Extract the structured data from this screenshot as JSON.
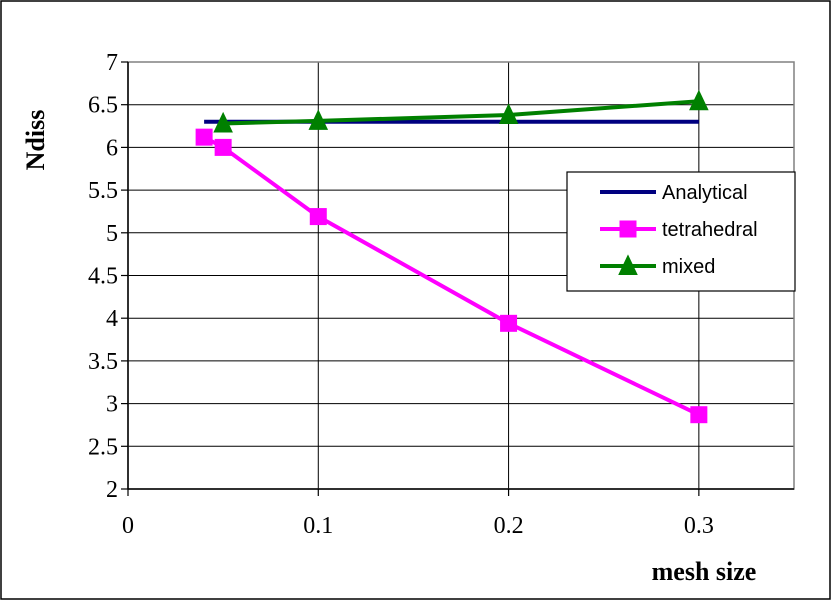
{
  "chart_data": {
    "type": "line",
    "xlabel": "mesh size",
    "ylabel": "Ndiss",
    "xlim": [
      0,
      0.35
    ],
    "ylim": [
      2,
      7
    ],
    "x_ticks": [
      "0",
      "0.1",
      "0.2",
      "0.3"
    ],
    "y_ticks": [
      "2",
      "2.5",
      "3",
      "3.5",
      "4",
      "4.5",
      "5",
      "5.5",
      "6",
      "6.5",
      "7"
    ],
    "grid": true,
    "legend_position": "right",
    "series": [
      {
        "name": "Analytical",
        "color": "#000080",
        "marker": "none",
        "x": [
          0.04,
          0.3
        ],
        "y": [
          6.3,
          6.3
        ]
      },
      {
        "name": "tetrahedral",
        "color": "#ff00ff",
        "marker": "square",
        "x": [
          0.04,
          0.05,
          0.1,
          0.2,
          0.3
        ],
        "y": [
          6.12,
          6.0,
          5.19,
          3.94,
          2.87
        ]
      },
      {
        "name": "mixed",
        "color": "#008000",
        "marker": "triangle",
        "x": [
          0.05,
          0.1,
          0.2,
          0.3
        ],
        "y": [
          6.28,
          6.31,
          6.38,
          6.54
        ]
      }
    ]
  }
}
